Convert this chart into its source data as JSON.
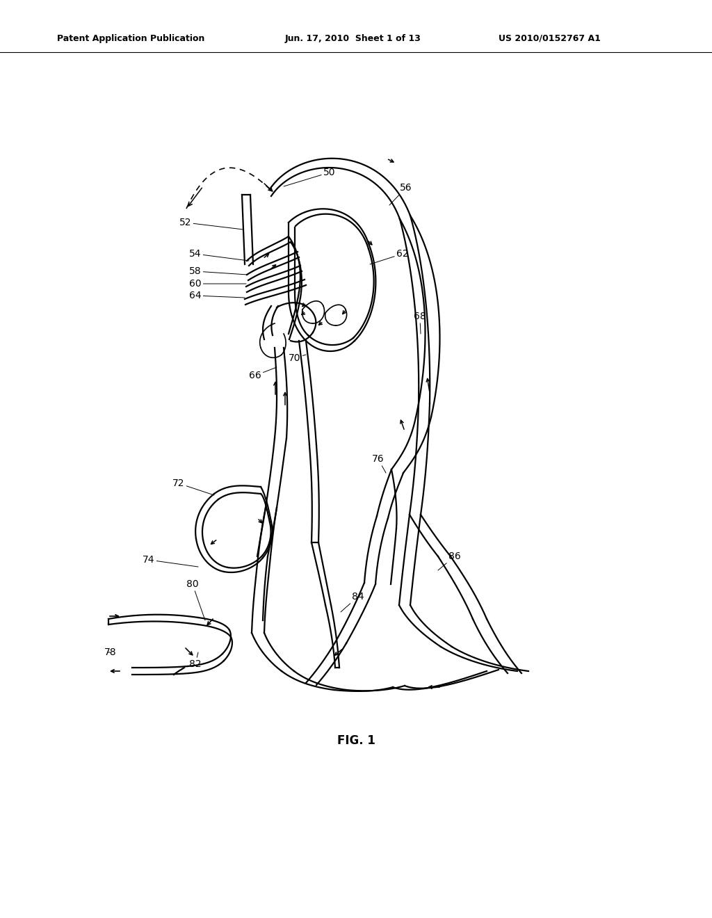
{
  "background_color": "#ffffff",
  "title_left": "Patent Application Publication",
  "title_center": "Jun. 17, 2010  Sheet 1 of 13",
  "title_right": "US 2010/0152767 A1",
  "fig_label": "FIG. 1",
  "lw_main": 1.6,
  "lw_thin": 1.2
}
